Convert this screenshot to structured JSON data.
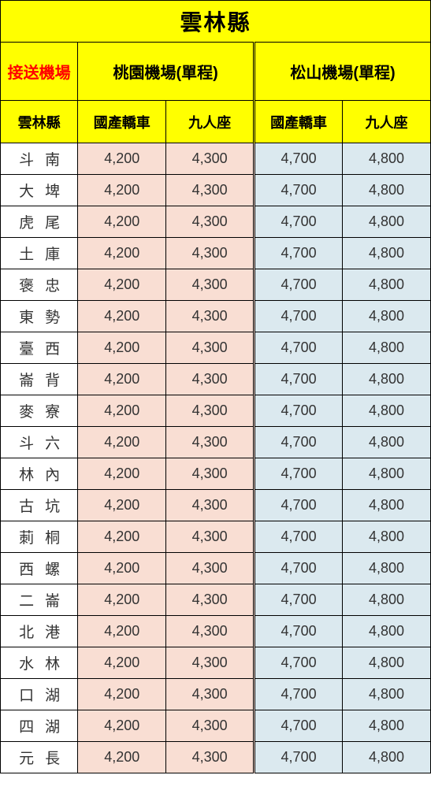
{
  "title": "雲林縣",
  "header": {
    "airport_label": "接送機場",
    "taoyuan_label": "桃園機場(單程)",
    "songshan_label": "松山機場(單程)",
    "region_label": "雲林縣",
    "sedan_label": "國產轎車",
    "van_label": "九人座"
  },
  "colors": {
    "header_bg": "#ffff00",
    "peach_bg": "#f9ded3",
    "blue_bg": "#dbe9ef",
    "airport_label_color": "#ff0000",
    "border_color": "#000000",
    "text_color": "#333333"
  },
  "rows": [
    {
      "loc": "斗南",
      "ty_sedan": "4,200",
      "ty_van": "4,300",
      "ss_sedan": "4,700",
      "ss_van": "4,800"
    },
    {
      "loc": "大埤",
      "ty_sedan": "4,200",
      "ty_van": "4,300",
      "ss_sedan": "4,700",
      "ss_van": "4,800"
    },
    {
      "loc": "虎尾",
      "ty_sedan": "4,200",
      "ty_van": "4,300",
      "ss_sedan": "4,700",
      "ss_van": "4,800"
    },
    {
      "loc": "土庫",
      "ty_sedan": "4,200",
      "ty_van": "4,300",
      "ss_sedan": "4,700",
      "ss_van": "4,800"
    },
    {
      "loc": "褒忠",
      "ty_sedan": "4,200",
      "ty_van": "4,300",
      "ss_sedan": "4,700",
      "ss_van": "4,800"
    },
    {
      "loc": "東勢",
      "ty_sedan": "4,200",
      "ty_van": "4,300",
      "ss_sedan": "4,700",
      "ss_van": "4,800"
    },
    {
      "loc": "臺西",
      "ty_sedan": "4,200",
      "ty_van": "4,300",
      "ss_sedan": "4,700",
      "ss_van": "4,800"
    },
    {
      "loc": "崙背",
      "ty_sedan": "4,200",
      "ty_van": "4,300",
      "ss_sedan": "4,700",
      "ss_van": "4,800"
    },
    {
      "loc": "麥寮",
      "ty_sedan": "4,200",
      "ty_van": "4,300",
      "ss_sedan": "4,700",
      "ss_van": "4,800"
    },
    {
      "loc": "斗六",
      "ty_sedan": "4,200",
      "ty_van": "4,300",
      "ss_sedan": "4,700",
      "ss_van": "4,800"
    },
    {
      "loc": "林內",
      "ty_sedan": "4,200",
      "ty_van": "4,300",
      "ss_sedan": "4,700",
      "ss_van": "4,800"
    },
    {
      "loc": "古坑",
      "ty_sedan": "4,200",
      "ty_van": "4,300",
      "ss_sedan": "4,700",
      "ss_van": "4,800"
    },
    {
      "loc": "莿桐",
      "ty_sedan": "4,200",
      "ty_van": "4,300",
      "ss_sedan": "4,700",
      "ss_van": "4,800"
    },
    {
      "loc": "西螺",
      "ty_sedan": "4,200",
      "ty_van": "4,300",
      "ss_sedan": "4,700",
      "ss_van": "4,800"
    },
    {
      "loc": "二崙",
      "ty_sedan": "4,200",
      "ty_van": "4,300",
      "ss_sedan": "4,700",
      "ss_van": "4,800"
    },
    {
      "loc": "北港",
      "ty_sedan": "4,200",
      "ty_van": "4,300",
      "ss_sedan": "4,700",
      "ss_van": "4,800"
    },
    {
      "loc": "水林",
      "ty_sedan": "4,200",
      "ty_van": "4,300",
      "ss_sedan": "4,700",
      "ss_van": "4,800"
    },
    {
      "loc": "口湖",
      "ty_sedan": "4,200",
      "ty_van": "4,300",
      "ss_sedan": "4,700",
      "ss_van": "4,800"
    },
    {
      "loc": "四湖",
      "ty_sedan": "4,200",
      "ty_van": "4,300",
      "ss_sedan": "4,700",
      "ss_van": "4,800"
    },
    {
      "loc": "元長",
      "ty_sedan": "4,200",
      "ty_van": "4,300",
      "ss_sedan": "4,700",
      "ss_van": "4,800"
    }
  ]
}
